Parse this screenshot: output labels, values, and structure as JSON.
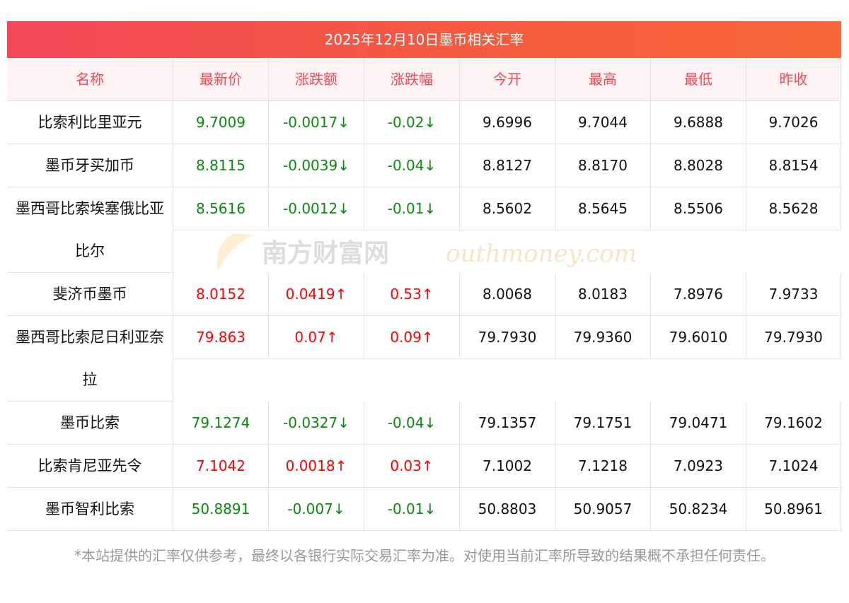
{
  "title": "2025年12月10日墨币相关汇率",
  "headers": [
    "名称",
    "最新价",
    "涨跌额",
    "涨跌幅",
    "今开",
    "最高",
    "最低",
    "昨收"
  ],
  "rows": [
    {
      "name": "比索利比里亚元",
      "latest": "9.7009",
      "change": "-0.0017↓",
      "pct": "-0.02↓",
      "open": "9.6996",
      "high": "9.7044",
      "low": "9.6888",
      "prev": "9.7026",
      "dir": "down"
    },
    {
      "name": "墨币牙买加币",
      "latest": "8.8115",
      "change": "-0.0039↓",
      "pct": "-0.04↓",
      "open": "8.8127",
      "high": "8.8170",
      "low": "8.8028",
      "prev": "8.8154",
      "dir": "down"
    },
    {
      "name": "墨西哥比索埃塞俄比亚比尔",
      "latest": "8.5616",
      "change": "-0.0012↓",
      "pct": "-0.01↓",
      "open": "8.5602",
      "high": "8.5645",
      "low": "8.5506",
      "prev": "8.5628",
      "dir": "down"
    },
    {
      "name": "斐济币墨币",
      "latest": "8.0152",
      "change": "0.0419↑",
      "pct": "0.53↑",
      "open": "8.0068",
      "high": "8.0183",
      "low": "7.8976",
      "prev": "7.9733",
      "dir": "up"
    },
    {
      "name": "墨西哥比索尼日利亚奈拉",
      "latest": "79.863",
      "change": "0.07↑",
      "pct": "0.09↑",
      "open": "79.7930",
      "high": "79.9360",
      "low": "79.6010",
      "prev": "79.7930",
      "dir": "up"
    },
    {
      "name": "墨币比索",
      "latest": "79.1274",
      "change": "-0.0327↓",
      "pct": "-0.04↓",
      "open": "79.1357",
      "high": "79.1751",
      "low": "79.0471",
      "prev": "79.1602",
      "dir": "down"
    },
    {
      "name": "比索肯尼亚先令",
      "latest": "7.1042",
      "change": "0.0018↑",
      "pct": "0.03↑",
      "open": "7.1002",
      "high": "7.1218",
      "low": "7.0923",
      "prev": "7.1024",
      "dir": "up"
    },
    {
      "name": "墨币智利比索",
      "latest": "50.8891",
      "change": "-0.007↓",
      "pct": "-0.01↓",
      "open": "50.8803",
      "high": "50.9057",
      "low": "50.8234",
      "prev": "50.8961",
      "dir": "down"
    }
  ],
  "note": "*本站提供的汇率仅供参考，最终以各银行实际交易汇率为准。对使用当前汇率所导致的结果概不承担任何责任。",
  "watermark": {
    "cn": "南方财富网",
    "en": "outhmoney.com"
  },
  "colors": {
    "up": "#ff0000",
    "down": "#0a8a0a",
    "header_text": "#f04a55"
  }
}
